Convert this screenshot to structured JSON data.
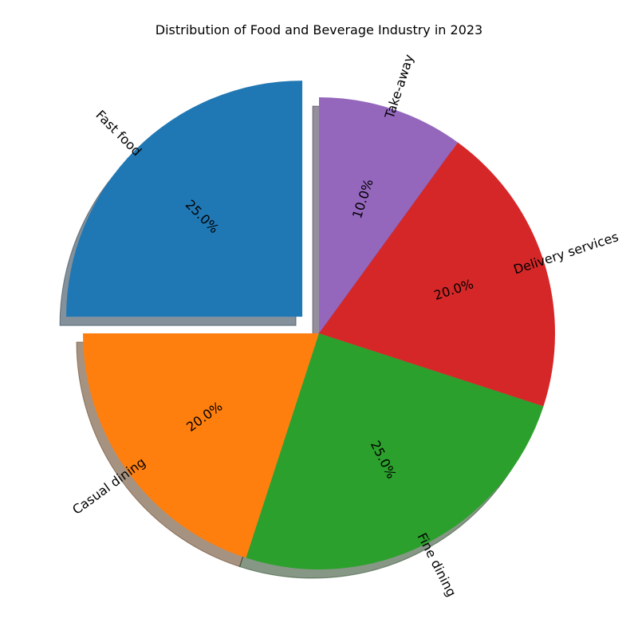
{
  "chart_data": {
    "type": "pie",
    "title": "Distribution of Food and Beverage Industry in 2023",
    "categories": [
      "Fast food",
      "Casual dining",
      "Fine dining",
      "Delivery services",
      "Take-away"
    ],
    "values": [
      25,
      20,
      25,
      20,
      10
    ],
    "percent_labels": [
      "25.0%",
      "20.0%",
      "25.0%",
      "20.0%",
      "10.0%"
    ],
    "colors": [
      "#1f77b4",
      "#ff7f0e",
      "#2ca02c",
      "#d62728",
      "#9467bd"
    ],
    "explode": [
      0.1,
      0,
      0,
      0,
      0
    ],
    "start_angle_deg": 90,
    "direction": "counterclockwise",
    "shadow": true,
    "label_rotation": "radial",
    "legend": "none"
  }
}
